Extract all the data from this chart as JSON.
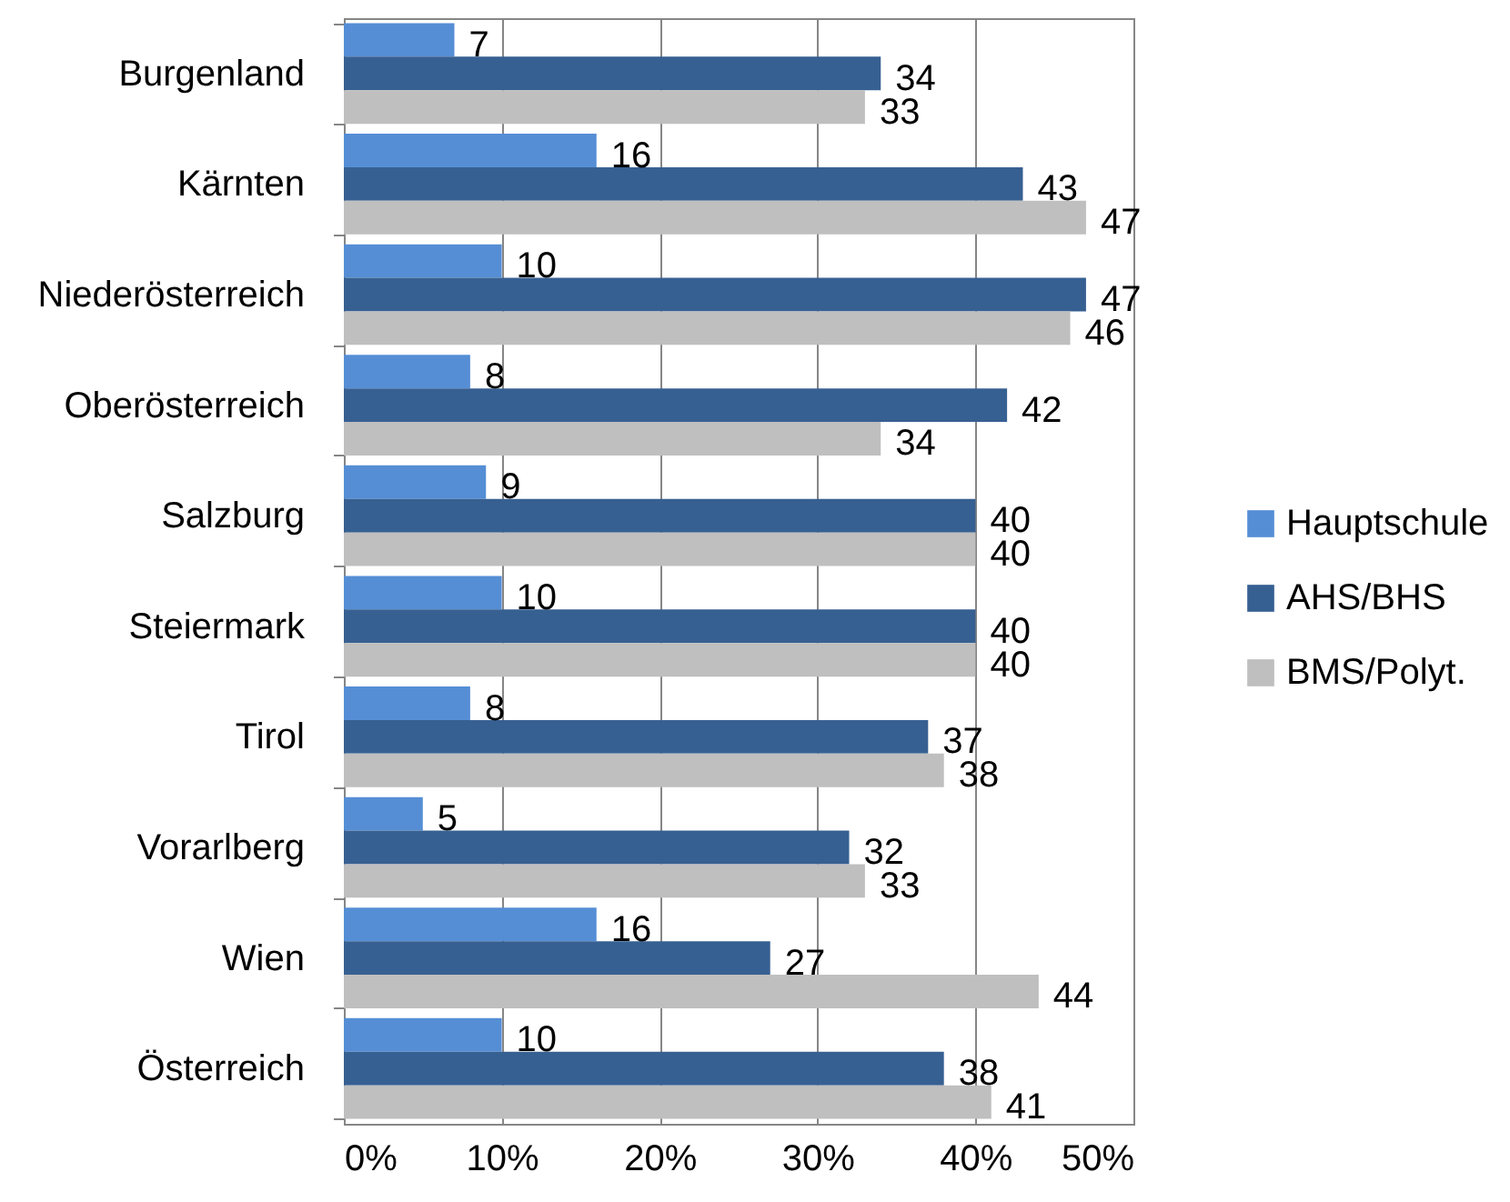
{
  "chart_data": {
    "type": "bar",
    "orientation": "horizontal",
    "categories": [
      "Burgenland",
      "Kärnten",
      "Niederösterreich",
      "Oberösterreich",
      "Salzburg",
      "Steiermark",
      "Tirol",
      "Vorarlberg",
      "Wien",
      "Österreich"
    ],
    "series": [
      {
        "name": "Hauptschule",
        "color": "#558ed5",
        "values": [
          7,
          16,
          10,
          8,
          9,
          10,
          8,
          5,
          16,
          10
        ]
      },
      {
        "name": "AHS/BHS",
        "color": "#376092",
        "values": [
          34,
          43,
          47,
          42,
          40,
          40,
          37,
          32,
          27,
          38
        ]
      },
      {
        "name": "BMS/Polyt.",
        "color": "#bfbfbf",
        "values": [
          33,
          47,
          46,
          34,
          40,
          40,
          38,
          33,
          44,
          41
        ]
      }
    ],
    "xlim": [
      0,
      50
    ],
    "xticks": [
      {
        "value": 0,
        "label": "0%"
      },
      {
        "value": 10,
        "label": "10%"
      },
      {
        "value": 20,
        "label": "20%"
      },
      {
        "value": 30,
        "label": "30%"
      },
      {
        "value": 40,
        "label": "40%"
      },
      {
        "value": 50,
        "label": "50%"
      }
    ],
    "grid": "x",
    "legend": "right",
    "data_labels": true
  }
}
